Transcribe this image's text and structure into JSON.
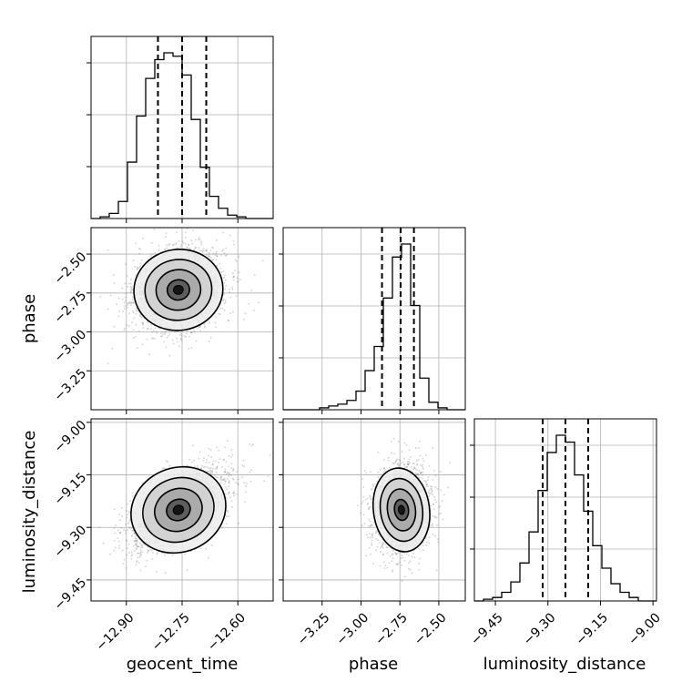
{
  "chart_data": {
    "type": "corner",
    "parameters": [
      "geocent_time",
      "phase",
      "luminosity_distance"
    ],
    "axis_labels": {
      "x": [
        "geocent_time",
        "phase",
        "luminosity_distance"
      ],
      "y": [
        "phase",
        "luminosity_distance"
      ]
    },
    "ranges": {
      "geocent_time": [
        -12.995,
        -12.505
      ],
      "phase": [
        -3.5,
        -2.33
      ],
      "luminosity_distance": [
        -9.51,
        -8.99
      ]
    },
    "ticks": {
      "geocent_time": [
        -12.9,
        -12.75,
        -12.6
      ],
      "phase": [
        -3.25,
        -3.0,
        -2.75,
        -2.5
      ],
      "luminosity_distance": [
        -9.45,
        -9.3,
        -9.15,
        -9.0
      ]
    },
    "tick_labels": {
      "geocent_time": [
        "−12.90",
        "−12.75",
        "−12.60"
      ],
      "phase": [
        "−3.25",
        "−3.00",
        "−2.75",
        "−2.50"
      ],
      "luminosity_distance": [
        "−9.45",
        "−9.30",
        "−9.15",
        "−9.00"
      ]
    },
    "histograms": [
      {
        "param": "geocent_time",
        "bin_edges": [
          -12.995,
          -12.9705,
          -12.946,
          -12.9215,
          -12.897,
          -12.8725,
          -12.848,
          -12.8235,
          -12.799,
          -12.7745,
          -12.75,
          -12.7255,
          -12.701,
          -12.6765,
          -12.652,
          -12.6275,
          -12.603,
          -12.5785,
          -12.554,
          -12.5295,
          -12.505
        ],
        "counts": [
          0,
          1,
          3,
          10,
          33,
          60,
          82,
          93,
          97,
          95,
          84,
          58,
          30,
          13,
          6,
          2,
          1,
          0,
          0,
          0
        ],
        "quantiles": [
          -12.815,
          -12.75,
          -12.685
        ]
      },
      {
        "param": "phase",
        "bin_edges": [
          -3.5,
          -3.4415,
          -3.383,
          -3.3245,
          -3.266,
          -3.2075,
          -3.149,
          -3.0905,
          -3.032,
          -2.9735,
          -2.915,
          -2.8565,
          -2.798,
          -2.7395,
          -2.681,
          -2.6225,
          -2.564,
          -2.5055,
          -2.447,
          -2.3885,
          -2.33
        ],
        "counts": [
          0,
          0,
          0,
          0,
          1,
          2,
          3,
          5,
          10,
          21,
          34,
          60,
          82,
          89,
          56,
          17,
          4,
          1,
          0,
          0
        ],
        "quantiles": [
          -2.865,
          -2.745,
          -2.66
        ]
      },
      {
        "param": "luminosity_distance",
        "bin_edges": [
          -9.51,
          -9.484,
          -9.458,
          -9.432,
          -9.406,
          -9.38,
          -9.354,
          -9.328,
          -9.302,
          -9.276,
          -9.25,
          -9.224,
          -9.198,
          -9.172,
          -9.146,
          -9.12,
          -9.094,
          -9.068,
          -9.042,
          -9.016,
          -8.99
        ],
        "counts": [
          0,
          1,
          2,
          5,
          11,
          22,
          40,
          64,
          86,
          96,
          92,
          73,
          52,
          32,
          19,
          10,
          5,
          2,
          0,
          0
        ],
        "quantiles": [
          -9.315,
          -9.25,
          -9.185
        ]
      }
    ],
    "joint": [
      {
        "x": "geocent_time",
        "y": "phase",
        "samples_drawn": 2600,
        "mean": [
          -12.76,
          -2.73
        ],
        "sd": [
          0.06,
          0.13
        ],
        "correlation": 0.2
      },
      {
        "x": "geocent_time",
        "y": "luminosity_distance",
        "samples_drawn": 2600,
        "mean": [
          -12.76,
          -9.25
        ],
        "sd": [
          0.065,
          0.06
        ],
        "correlation": 0.55
      },
      {
        "x": "phase",
        "y": "luminosity_distance",
        "samples_drawn": 2600,
        "mean": [
          -2.74,
          -9.25
        ],
        "sd": [
          0.09,
          0.06
        ],
        "correlation": 0.1
      }
    ],
    "grid": true,
    "legend": "none"
  }
}
